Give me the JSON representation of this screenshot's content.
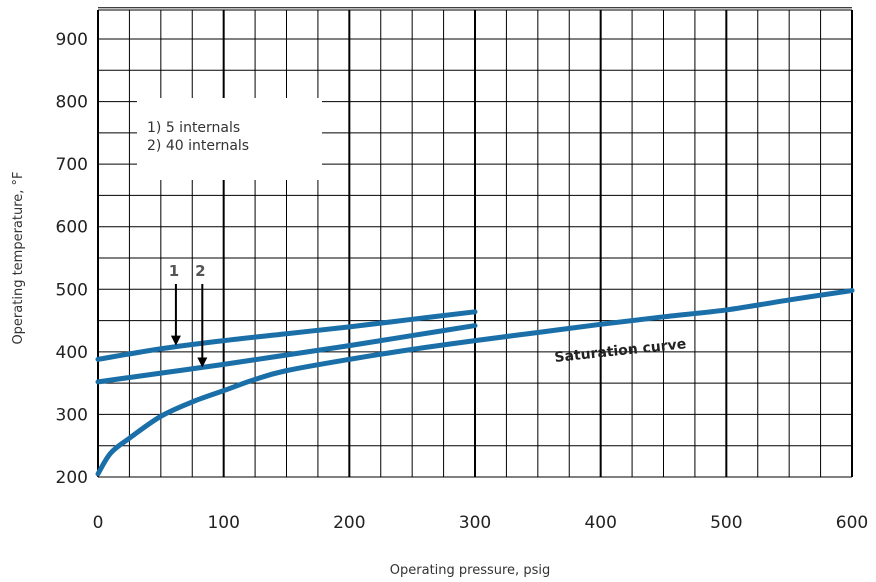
{
  "chart_data": {
    "type": "line",
    "xlabel": "Operating pressure, psig",
    "ylabel": "Operating temperature, °F",
    "xlim": [
      0,
      600
    ],
    "ylim": [
      200,
      950
    ],
    "x_ticks": [
      0,
      100,
      200,
      300,
      400,
      500,
      600
    ],
    "y_ticks": [
      200,
      300,
      400,
      500,
      600,
      700,
      800,
      900
    ],
    "grid": true,
    "line_color": "#1a6fa8",
    "grid_color": "#000000",
    "legend": {
      "placement": "top-left",
      "entries": [
        "1) 5 internals",
        "2) 40 internals"
      ]
    },
    "series": [
      {
        "name": "1",
        "x": [
          0,
          50,
          100,
          150,
          200,
          250,
          300
        ],
        "y": [
          388,
          405,
          418,
          429,
          440,
          452,
          464
        ]
      },
      {
        "name": "2",
        "x": [
          0,
          50,
          100,
          150,
          200,
          250,
          300
        ],
        "y": [
          352,
          366,
          380,
          395,
          410,
          426,
          442
        ]
      },
      {
        "name": "Saturation curve",
        "x": [
          0,
          10,
          25,
          50,
          75,
          100,
          125,
          150,
          200,
          250,
          300,
          350,
          400,
          450,
          500,
          550,
          600
        ],
        "y": [
          205,
          238,
          262,
          297,
          320,
          338,
          356,
          370,
          388,
          404,
          418,
          431,
          444,
          456,
          467,
          483,
          498
        ]
      }
    ],
    "annotations": [
      {
        "label": "1",
        "x": 62,
        "y": 410
      },
      {
        "label": "2",
        "x": 83,
        "y": 375
      },
      {
        "label": "Saturation curve",
        "x": 470,
        "y": 430
      }
    ]
  }
}
